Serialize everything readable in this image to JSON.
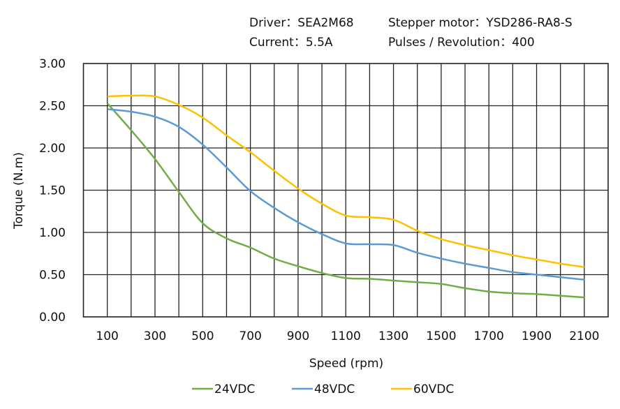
{
  "header": {
    "driver": "Driver：SEA2M68",
    "motor": "Stepper motor：YSD286-RA8-S",
    "current": "Current：5.5A",
    "pulses": "Pulses / Revolution：400"
  },
  "chart_data": {
    "type": "line",
    "title": "",
    "xlabel": "Speed  (rpm)",
    "ylabel": "Torque (N.m)",
    "xlim": [
      0,
      2200
    ],
    "ylim": [
      0,
      3
    ],
    "grid": true,
    "legend_position": "bottom",
    "x_ticks": [
      "100",
      "300",
      "500",
      "700",
      "900",
      "1100",
      "1300",
      "1500",
      "1700",
      "1900",
      "2100"
    ],
    "y_ticks": [
      "0.00",
      "0.50",
      "1.00",
      "1.50",
      "2.00",
      "2.50",
      "3.00"
    ],
    "x": [
      100,
      200,
      300,
      400,
      500,
      600,
      700,
      800,
      900,
      1000,
      1100,
      1200,
      1300,
      1400,
      1500,
      1600,
      1700,
      1800,
      1900,
      2000,
      2100
    ],
    "series": [
      {
        "name": "24VDC",
        "color": "#70ad47",
        "values": [
          2.53,
          2.21,
          1.87,
          1.48,
          1.11,
          0.93,
          0.82,
          0.69,
          0.6,
          0.52,
          0.46,
          0.45,
          0.43,
          0.41,
          0.39,
          0.34,
          0.3,
          0.28,
          0.27,
          0.25,
          0.23
        ]
      },
      {
        "name": "48VDC",
        "color": "#5b9bd5",
        "values": [
          2.46,
          2.43,
          2.37,
          2.25,
          2.04,
          1.77,
          1.49,
          1.29,
          1.12,
          0.98,
          0.87,
          0.86,
          0.85,
          0.76,
          0.69,
          0.63,
          0.58,
          0.53,
          0.5,
          0.47,
          0.44
        ]
      },
      {
        "name": "60VDC",
        "color": "#ffc000",
        "values": [
          2.61,
          2.62,
          2.61,
          2.51,
          2.36,
          2.15,
          1.95,
          1.73,
          1.52,
          1.34,
          1.2,
          1.18,
          1.15,
          1.02,
          0.92,
          0.85,
          0.79,
          0.73,
          0.68,
          0.63,
          0.59
        ]
      }
    ]
  }
}
